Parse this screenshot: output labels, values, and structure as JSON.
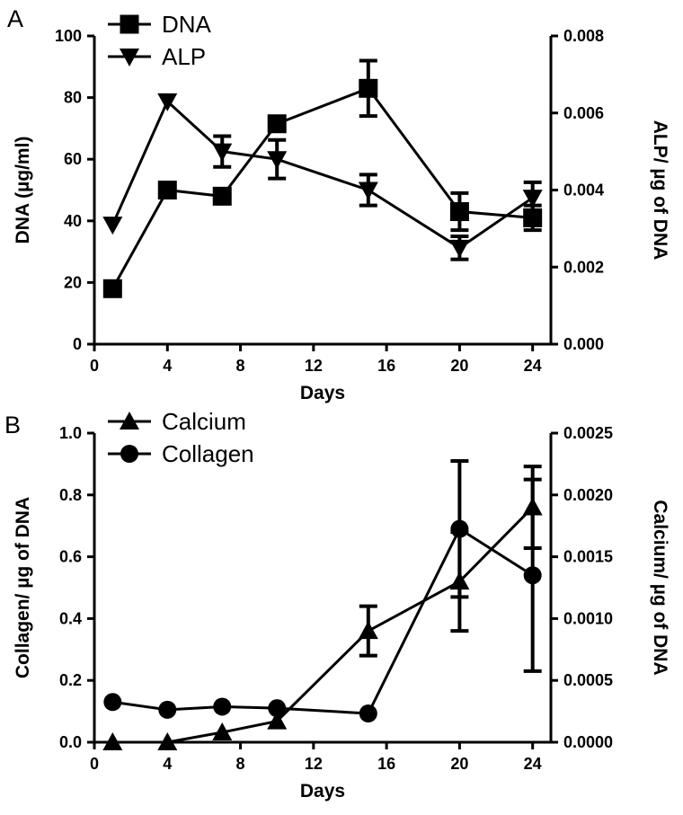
{
  "chart_data": [
    {
      "panel_label": "A",
      "type": "line",
      "x": [
        1,
        4,
        7,
        10,
        15,
        20,
        24
      ],
      "xlabel": "Days",
      "xlim": [
        0,
        25
      ],
      "xticks": [
        "0",
        "4",
        "8",
        "12",
        "16",
        "20",
        "24"
      ],
      "ylabel": "DNA (µg/ml)",
      "ylim": [
        0,
        100
      ],
      "yticks": [
        "0",
        "20",
        "40",
        "60",
        "80",
        "100"
      ],
      "y2label": "ALP/ µg of DNA",
      "y2lim": [
        0,
        0.008
      ],
      "y2ticks": [
        "0.000",
        "0.002",
        "0.004",
        "0.006",
        "0.008"
      ],
      "legend_position": "top-left",
      "series": [
        {
          "name": "DNA",
          "axis": "left",
          "marker": "square",
          "values": [
            18,
            50,
            48,
            71.5,
            83,
            43,
            41
          ],
          "errors": [
            0,
            0,
            0,
            0,
            9,
            6,
            4
          ]
        },
        {
          "name": "ALP",
          "axis": "right",
          "marker": "triangle-down",
          "values": [
            0.0031,
            0.0063,
            0.005,
            0.0048,
            0.004,
            0.0025,
            0.0038
          ],
          "errors": [
            0,
            0,
            0.0004,
            0.0005,
            0.0004,
            0.0003,
            0.0004
          ]
        }
      ]
    },
    {
      "panel_label": "B",
      "type": "line",
      "x": [
        1,
        4,
        7,
        10,
        15,
        20,
        24
      ],
      "xlabel": "Days",
      "xlim": [
        0,
        25
      ],
      "xticks": [
        "0",
        "4",
        "8",
        "12",
        "16",
        "20",
        "24"
      ],
      "ylabel": "Collagen/ µg of DNA",
      "ylim": [
        0,
        1.0
      ],
      "yticks": [
        "0.0",
        "0.2",
        "0.4",
        "0.6",
        "0.8",
        "1.0"
      ],
      "y2label": "Calcium/ µg of DNA",
      "y2lim": [
        0,
        0.0025
      ],
      "y2ticks": [
        "0.0000",
        "0.0005",
        "0.0010",
        "0.0015",
        "0.0020",
        "0.0025"
      ],
      "legend_position": "top-left",
      "series": [
        {
          "name": "Calcium",
          "axis": "right",
          "marker": "triangle-up",
          "values": [
            0,
            0,
            8e-05,
            0.00017,
            0.0009,
            0.0013,
            0.0019
          ],
          "errors": [
            0,
            0,
            0,
            0,
            0.0002,
            0.0004,
            0.00033
          ]
        },
        {
          "name": "Collagen",
          "axis": "left",
          "marker": "circle",
          "values": [
            0.13,
            0.105,
            0.115,
            0.11,
            0.093,
            0.69,
            0.54
          ],
          "errors": [
            0,
            0,
            0,
            0,
            0,
            0.22,
            0.31
          ]
        }
      ]
    }
  ]
}
